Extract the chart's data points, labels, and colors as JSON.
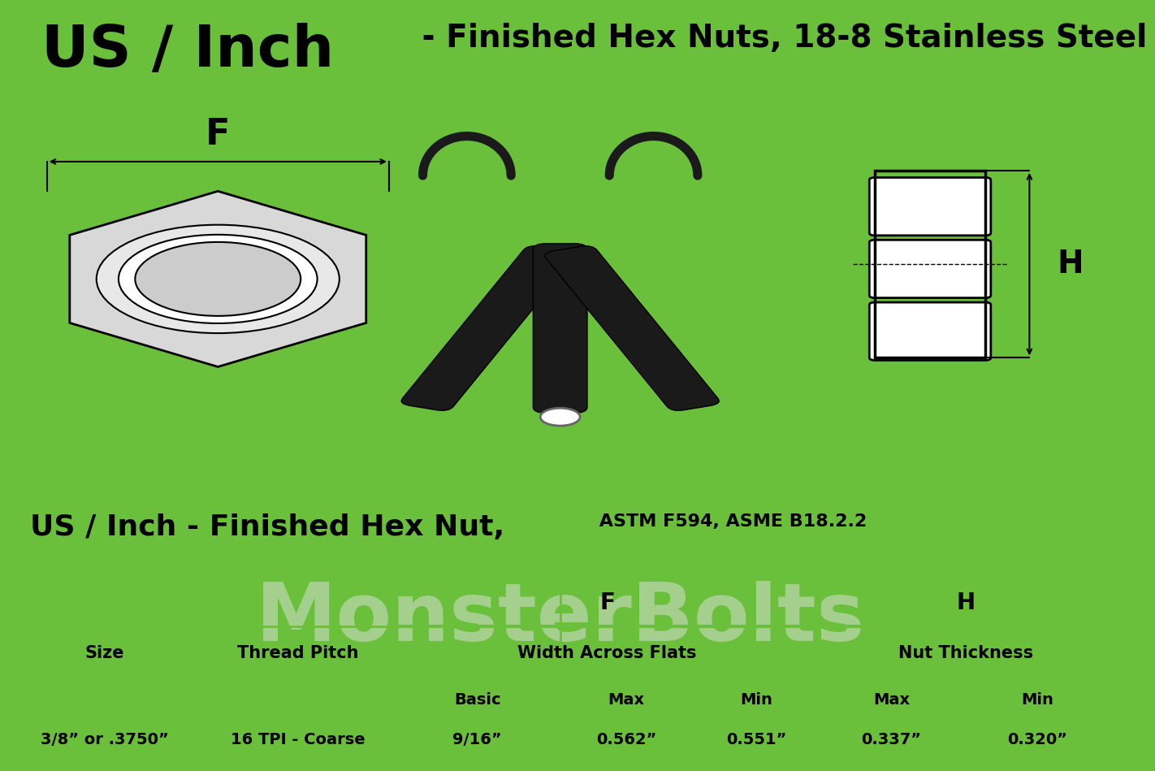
{
  "title_big": "US / Inch",
  "title_small": " - Finished Hex Nuts, 18-8 Stainless Steel",
  "table_title_big": "US / Inch - Finished Hex Nut,",
  "table_title_small": " ASTM F594, ASME B18.2.2",
  "border_color": "#6abf3b",
  "background_color": "#ffffff",
  "border_width": 8,
  "header_bg": "#ffffff",
  "row_bg": "#ffffff",
  "line_color": "#6abf3b",
  "columns": [
    "Size",
    "Thread Pitch",
    "F\nWidth Across Flats",
    "H\nNut Thickness"
  ],
  "sub_columns_F": [
    "Basic",
    "Max",
    "Min"
  ],
  "sub_columns_H": [
    "Max",
    "Min"
  ],
  "data_row": [
    "3/8” or .3750”",
    "16 TPI - Coarse",
    "9/16”",
    "0.562”",
    "0.551”",
    "0.337”",
    "0.320”"
  ],
  "watermark": "MonsterBolts",
  "F_label": "F",
  "H_label": "H"
}
